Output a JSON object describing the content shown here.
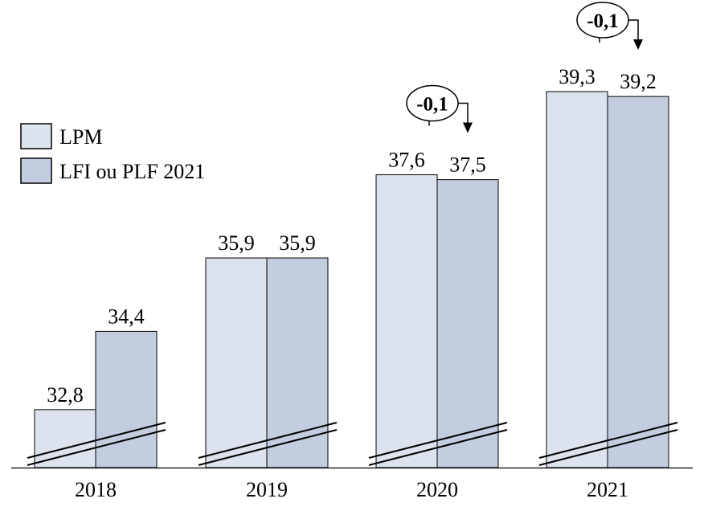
{
  "chart_data": {
    "type": "bar",
    "title": "",
    "xlabel": "",
    "ylabel": "",
    "broken_axis": true,
    "ylim": [
      31,
      40
    ],
    "categories": [
      "2018",
      "2019",
      "2020",
      "2021"
    ],
    "series": [
      {
        "name": "LPM",
        "color": "#dde3ee",
        "values": [
          32.8,
          35.9,
          37.6,
          39.3
        ],
        "labels": [
          "32,8",
          "35,9",
          "37,6",
          "39,3"
        ]
      },
      {
        "name": "LFI ou PLF 2021",
        "color": "#c3cde0",
        "values": [
          34.4,
          35.9,
          37.5,
          39.2
        ],
        "labels": [
          "34,4",
          "35,9",
          "37,5",
          "39,2"
        ]
      }
    ],
    "annotations": [
      {
        "category": "2020",
        "text": "-0,1"
      },
      {
        "category": "2021",
        "text": "-0,1"
      }
    ],
    "legend": {
      "position": "top-left"
    },
    "grid": false
  }
}
